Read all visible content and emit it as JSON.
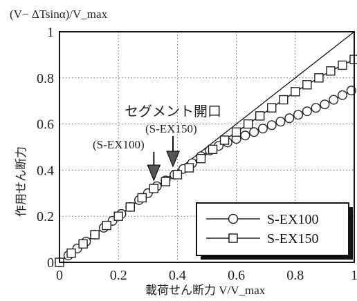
{
  "chart_data": {
    "type": "line",
    "title": "",
    "ylabel_top": "(V− ΔTsinα)/V_max",
    "ylabel_side": "作用せん断力",
    "xlabel": "載荷せん断力  V/V_max",
    "xlim": [
      0,
      1
    ],
    "ylim": [
      0,
      1
    ],
    "x_ticks": [
      "0",
      "0.2",
      "0.4",
      "0.6",
      "0.8",
      "1"
    ],
    "y_ticks": [
      "0",
      "0.2",
      "0.4",
      "0.6",
      "0.8",
      "1"
    ],
    "grid": true,
    "legend_position": "bottom-right",
    "reference_line": {
      "x": [
        0,
        1
      ],
      "y": [
        0,
        1
      ]
    },
    "series": [
      {
        "name": "S-EX100",
        "marker": "circle",
        "x": [
          0,
          0.03,
          0.06,
          0.09,
          0.12,
          0.15,
          0.18,
          0.21,
          0.24,
          0.27,
          0.3,
          0.33,
          0.36,
          0.39,
          0.42,
          0.45,
          0.48,
          0.51,
          0.54,
          0.57,
          0.6,
          0.63,
          0.66,
          0.69,
          0.72,
          0.75,
          0.78,
          0.81,
          0.84,
          0.87,
          0.9,
          0.93,
          0.96,
          0.99
        ],
        "y": [
          0,
          0.03,
          0.06,
          0.09,
          0.12,
          0.15,
          0.18,
          0.21,
          0.24,
          0.27,
          0.3,
          0.33,
          0.355,
          0.38,
          0.405,
          0.43,
          0.46,
          0.485,
          0.505,
          0.52,
          0.535,
          0.55,
          0.565,
          0.58,
          0.595,
          0.61,
          0.625,
          0.64,
          0.655,
          0.67,
          0.685,
          0.705,
          0.725,
          0.745
        ]
      },
      {
        "name": "S-EX150",
        "marker": "square",
        "x": [
          0,
          0.04,
          0.08,
          0.12,
          0.16,
          0.2,
          0.24,
          0.28,
          0.32,
          0.36,
          0.4,
          0.44,
          0.48,
          0.52,
          0.56,
          0.6,
          0.64,
          0.68,
          0.72,
          0.76,
          0.8,
          0.84,
          0.88,
          0.92,
          0.96,
          1.0
        ],
        "y": [
          0,
          0.04,
          0.08,
          0.12,
          0.16,
          0.2,
          0.24,
          0.28,
          0.32,
          0.35,
          0.38,
          0.41,
          0.45,
          0.49,
          0.53,
          0.565,
          0.6,
          0.635,
          0.67,
          0.705,
          0.74,
          0.77,
          0.8,
          0.83,
          0.855,
          0.88
        ]
      }
    ],
    "annotations": [
      {
        "text": "セグメント開口",
        "target_x": 0.385,
        "target_y": 0.38
      },
      {
        "text": "(S-EX150)",
        "target_x": 0.385,
        "target_y": 0.38
      },
      {
        "text": "(S-EX100)",
        "target_x": 0.32,
        "target_y": 0.32
      }
    ]
  }
}
